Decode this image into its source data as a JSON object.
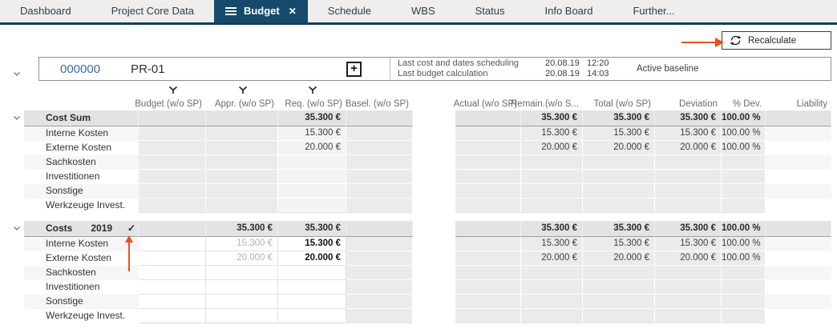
{
  "nav": {
    "tabs": [
      {
        "id": "dashboard",
        "label": "Dashboard",
        "active": false
      },
      {
        "id": "project-core-data",
        "label": "Project Core Data",
        "active": false
      },
      {
        "id": "budget",
        "label": "Budget",
        "active": true
      },
      {
        "id": "schedule",
        "label": "Schedule",
        "active": false
      },
      {
        "id": "wbs",
        "label": "WBS",
        "active": false
      },
      {
        "id": "status",
        "label": "Status",
        "active": false
      },
      {
        "id": "info-board",
        "label": "Info Board",
        "active": false
      },
      {
        "id": "further",
        "label": "Further...",
        "active": false
      }
    ],
    "close_icon": "✕"
  },
  "toolbar": {
    "recalculate_label": "Recalculate"
  },
  "project": {
    "code": "000000",
    "name": "PR-01",
    "plus_icon": "+",
    "info": [
      {
        "label": "Last cost and dates scheduling",
        "date": "20.08.19",
        "time": "12:20"
      },
      {
        "label": "Last budget calculation",
        "date": "20.08.19",
        "time": "14:03"
      }
    ],
    "baseline": "Active baseline"
  },
  "table": {
    "columns": [
      {
        "key": "budget",
        "label": "Budget (w/o SP)",
        "filter": true
      },
      {
        "key": "appr",
        "label": "Appr. (w/o SP)",
        "filter": true
      },
      {
        "key": "req",
        "label": "Req. (w/o SP)",
        "filter": true
      },
      {
        "key": "basel",
        "label": "Basel. (w/o SP)",
        "filter": false
      },
      {
        "key": "actual",
        "label": "Actual (w/o SP)",
        "filter": false
      },
      {
        "key": "remain",
        "label": "Remain.(w/o S...",
        "filter": false
      },
      {
        "key": "total",
        "label": "Total (w/o SP)",
        "filter": false
      },
      {
        "key": "dev",
        "label": "Deviation",
        "filter": false
      },
      {
        "key": "pdev",
        "label": "% Dev.",
        "filter": false
      },
      {
        "key": "liab",
        "label": "Liability",
        "filter": false
      }
    ],
    "blocks": [
      {
        "name": "cost-sum",
        "editable": false,
        "sum": {
          "label": "Cost Sum",
          "year": "",
          "checked": false,
          "cells": {
            "req": "35.300 €",
            "remain": "35.300 €",
            "total": "35.300 €",
            "dev": "35.300 €",
            "pdev": "100.00 %"
          }
        },
        "items": [
          {
            "label": "Interne Kosten",
            "cells": {
              "req": "15.300 €",
              "remain": "15.300 €",
              "total": "15.300 €",
              "dev": "15.300 €",
              "pdev": "100.00 %"
            }
          },
          {
            "label": "Externe Kosten",
            "cells": {
              "req": "20.000 €",
              "remain": "20.000 €",
              "total": "20.000 €",
              "dev": "20.000 €",
              "pdev": "100.00 %"
            }
          },
          {
            "label": "Sachkosten",
            "cells": {}
          },
          {
            "label": "Investitionen",
            "cells": {}
          },
          {
            "label": "Sonstige",
            "cells": {}
          },
          {
            "label": "Werkzeuge Invest.",
            "cells": {}
          }
        ]
      },
      {
        "name": "costs-2019",
        "editable": true,
        "sum": {
          "label": "Costs",
          "year": "2019",
          "checked": true,
          "check_icon": "✓",
          "cells": {
            "appr": "35.300 €",
            "req": "35.300 €",
            "remain": "35.300 €",
            "total": "35.300 €",
            "dev": "35.300 €",
            "pdev": "100.00 %"
          }
        },
        "items": [
          {
            "label": "Interne Kosten",
            "cells": {
              "appr": "15.300 €",
              "req": "15.300 €",
              "remain": "15.300 €",
              "total": "15.300 €",
              "dev": "15.300 €",
              "pdev": "100.00 %"
            }
          },
          {
            "label": "Externe Kosten",
            "cells": {
              "appr": "20.000 €",
              "req": "20.000 €",
              "remain": "20.000 €",
              "total": "20.000 €",
              "dev": "20.000 €",
              "pdev": "100.00 %"
            }
          },
          {
            "label": "Sachkosten",
            "cells": {}
          },
          {
            "label": "Investitionen",
            "cells": {}
          },
          {
            "label": "Sonstige",
            "cells": {}
          },
          {
            "label": "Werkzeuge Invest.",
            "cells": {}
          }
        ]
      }
    ]
  },
  "colors": {
    "active_tab": "#164a6c",
    "nav_border": "#11405e",
    "project_code_blue": "#3a6e9f",
    "annotation_arrow": "#e2531f"
  }
}
